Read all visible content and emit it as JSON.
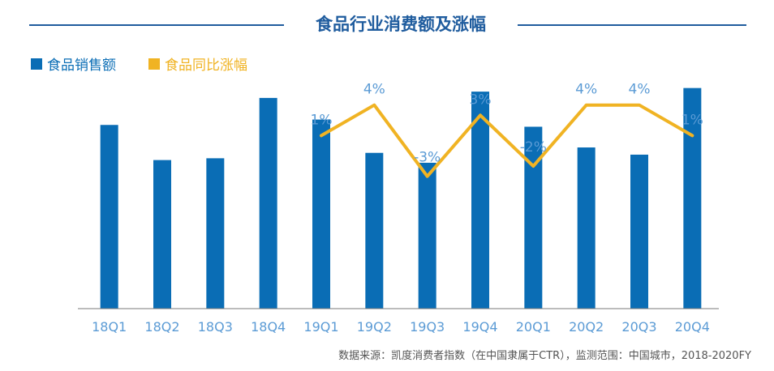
{
  "title": "食品行业消费额及涨幅",
  "source": "数据来源：凯度消费者指数（在中国隶属于CTR），监测范围：中国城市，2018-2020FY",
  "colors": {
    "bar": "#0a6db5",
    "line": "#f0b323",
    "title": "#1f5c9e",
    "label": "#5b9bd5",
    "axis": "#555555"
  },
  "chart_data": {
    "type": "bar",
    "categories": [
      "18Q1",
      "18Q2",
      "18Q3",
      "18Q4",
      "19Q1",
      "19Q2",
      "19Q3",
      "19Q4",
      "20Q1",
      "20Q2",
      "20Q3",
      "20Q4"
    ],
    "series": [
      {
        "name": "食品销售额",
        "type": "bar",
        "axis": "left",
        "values": [
          204,
          165,
          167,
          234,
          210,
          173,
          162,
          241,
          202,
          179,
          171,
          245
        ]
      },
      {
        "name": "食品同比涨幅",
        "type": "line",
        "axis": "right",
        "values": [
          null,
          null,
          null,
          null,
          1,
          4,
          -3,
          3,
          -2,
          4,
          4,
          1
        ],
        "labels": [
          null,
          null,
          null,
          null,
          "1%",
          "4%",
          "-3%",
          "3%",
          "-2%",
          "4%",
          "4%",
          "1%"
        ]
      }
    ],
    "ylim": [
      0,
      260
    ],
    "y2lim": [
      -16,
      7
    ],
    "legend": "top-left",
    "grid": false
  }
}
